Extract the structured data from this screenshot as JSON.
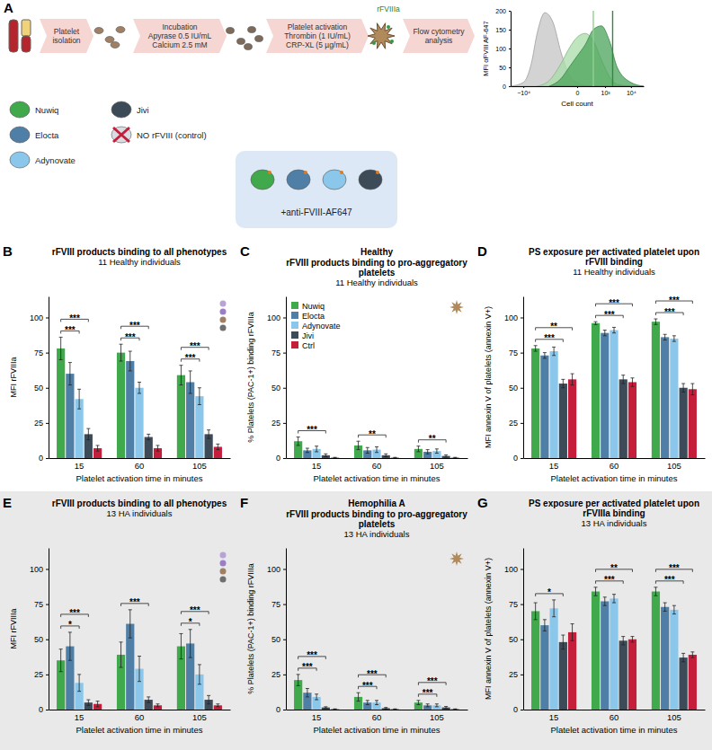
{
  "diagram": {
    "panel": "A",
    "steps": [
      [
        "Platelet",
        "isolation"
      ],
      [
        "Incubation",
        "Apyrase 0.5 IU/mL",
        "Calcium 2.5 mM"
      ],
      [
        "Platelet activation",
        "Thrombin (1 IU/mL)",
        "CRP-XL (5 µg/mL)"
      ],
      [
        "Flow cytometry",
        "analysis"
      ]
    ],
    "product_label": "rFVIIIa",
    "legend": [
      {
        "name": "Nuwiq",
        "color": "#3fa94b"
      },
      {
        "name": "Elocta",
        "color": "#4f7fa6"
      },
      {
        "name": "Adynovate",
        "color": "#8ac7ea"
      },
      {
        "name": "Jivi",
        "color": "#3d4b59"
      },
      {
        "name": "NO rFVIII (control)",
        "color": "#c41e3a"
      }
    ],
    "antibody_label": "+anti-FVIII-AF647"
  },
  "chart_data": [
    {
      "type": "area",
      "y_label": "MFI αFVIII AF-647",
      "x_label": "Cell count",
      "log": "x",
      "xlim": [
        -30000,
        30000
      ],
      "xticks": [
        {
          "value": -10000,
          "label": "−10⁴"
        },
        0,
        {
          "value": 1000,
          "label": "10³"
        },
        {
          "value": 10000,
          "label": "10⁴"
        }
      ],
      "ylim": [
        0,
        200
      ],
      "yticks": [
        0,
        50,
        100,
        150,
        200
      ],
      "series": [
        {
          "color": "#c4c4c4",
          "x": [
            -30000,
            -10000,
            -5000,
            -3000,
            -1500,
            -700,
            -300,
            -100,
            0,
            100,
            300
          ],
          "values": [
            0,
            10,
            60,
            140,
            195,
            170,
            90,
            30,
            10,
            2,
            0
          ]
        },
        {
          "color": "#a8dca8",
          "x": [
            -3000,
            -1000,
            -300,
            -100,
            0,
            100,
            300,
            700,
            1500,
            3000,
            10000
          ],
          "values": [
            0,
            15,
            60,
            100,
            130,
            140,
            120,
            70,
            25,
            5,
            0
          ]
        },
        {
          "color": "#4aa35a",
          "x": [
            -1000,
            -300,
            -100,
            0,
            100,
            300,
            700,
            1500,
            3000,
            10000,
            30000
          ],
          "values": [
            0,
            20,
            50,
            80,
            110,
            150,
            160,
            120,
            50,
            10,
            0
          ]
        }
      ],
      "reference_lines": [
        {
          "value": 300,
          "color": "#8fd18f"
        },
        {
          "value": 2000,
          "color": "#2e8b3e"
        }
      ]
    },
    {
      "panel": "B",
      "type": "bar",
      "title": "rFVIII products binding to all phenotypes",
      "subtitle": "11 Healthy individuals",
      "y_label": "MFI rFVIIIa",
      "x_label": "Platelet activation time in minutes",
      "categories": [
        "15",
        "60",
        "105"
      ],
      "ylim": [
        0,
        115
      ],
      "yticks": [
        0,
        25,
        50,
        75,
        100
      ],
      "series": [
        {
          "color": "#3fa94b",
          "values": [
            78,
            75,
            59
          ],
          "errors": [
            8,
            6,
            7
          ]
        },
        {
          "color": "#4f7fa6",
          "values": [
            60,
            69,
            54
          ],
          "errors": [
            8,
            7,
            8
          ]
        },
        {
          "color": "#8ac7ea",
          "values": [
            42,
            50,
            44
          ],
          "errors": [
            7,
            4,
            6
          ]
        },
        {
          "color": "#3d4b59",
          "values": [
            17,
            15,
            17
          ],
          "errors": [
            4,
            2,
            3
          ]
        },
        {
          "color": "#c41e3a",
          "values": [
            7,
            7,
            8
          ],
          "errors": [
            2,
            2,
            2
          ]
        }
      ],
      "significance": [
        {
          "category": "15",
          "series": [
            0,
            2
          ],
          "label": "***"
        },
        {
          "category": "15",
          "series": [
            0,
            3
          ],
          "label": "***"
        },
        {
          "category": "60",
          "series": [
            0,
            2
          ],
          "label": "***"
        },
        {
          "category": "60",
          "series": [
            0,
            3
          ],
          "label": "***"
        },
        {
          "category": "105",
          "series": [
            0,
            2
          ],
          "label": "***"
        },
        {
          "category": "105",
          "series": [
            0,
            3
          ],
          "label": "***"
        }
      ]
    },
    {
      "panel": "C",
      "type": "bar",
      "heading": "Healthy",
      "title": "rFVIII products binding to pro-aggregatory platelets",
      "subtitle": "11 Healthy individuals",
      "y_label": "% Platelets (PAC-1+) binding rFVIIIa",
      "x_label": "Platelet activation time in minutes",
      "categories": [
        "15",
        "60",
        "105"
      ],
      "ylim": [
        0,
        115
      ],
      "yticks": [
        0,
        25,
        50,
        75,
        100
      ],
      "legend": "top-left",
      "series": [
        {
          "name": "Nuwiq",
          "color": "#3fa94b",
          "values": [
            12,
            9,
            6.5
          ],
          "errors": [
            3,
            3,
            2
          ]
        },
        {
          "name": "Elocta",
          "color": "#4f7fa6",
          "values": [
            5.5,
            5.5,
            4.5
          ],
          "errors": [
            1.5,
            2,
            1.5
          ]
        },
        {
          "name": "Adynovate",
          "color": "#8ac7ea",
          "values": [
            6.5,
            6,
            5
          ],
          "errors": [
            2,
            2,
            1.5
          ]
        },
        {
          "name": "Jivi",
          "color": "#3d4b59",
          "values": [
            2,
            2,
            1.5
          ],
          "errors": [
            1,
            1,
            0.8
          ]
        },
        {
          "name": "Ctrl",
          "color": "#c41e3a",
          "values": [
            0.3,
            0.3,
            0.3
          ],
          "errors": [
            0.2,
            0.2,
            0.2
          ]
        }
      ],
      "significance": [
        {
          "category": "15",
          "series": [
            0,
            3
          ],
          "label": "***"
        },
        {
          "category": "60",
          "series": [
            0,
            3
          ],
          "label": "**"
        },
        {
          "category": "105",
          "series": [
            0,
            3
          ],
          "label": "**"
        }
      ]
    },
    {
      "panel": "D",
      "type": "bar",
      "title": "PS exposure per activated platelet upon rFVIII binding",
      "subtitle": "11 Healthy individuals",
      "y_label": "MFI annexin V of platelets (annexin V+)",
      "x_label": "Platelet activation time in minutes",
      "categories": [
        "15",
        "60",
        "105"
      ],
      "ylim": [
        0,
        115
      ],
      "yticks": [
        0,
        25,
        50,
        75,
        100
      ],
      "series": [
        {
          "color": "#3fa94b",
          "values": [
            78,
            96,
            97
          ],
          "errors": [
            2,
            1,
            2
          ]
        },
        {
          "color": "#4f7fa6",
          "values": [
            73,
            89,
            86
          ],
          "errors": [
            2,
            2,
            2
          ]
        },
        {
          "color": "#8ac7ea",
          "values": [
            76,
            91,
            85
          ],
          "errors": [
            3,
            2,
            2
          ]
        },
        {
          "color": "#3d4b59",
          "values": [
            53,
            56,
            50
          ],
          "errors": [
            3,
            3,
            3
          ]
        },
        {
          "color": "#c41e3a",
          "values": [
            56,
            54,
            49
          ],
          "errors": [
            4,
            3,
            4
          ]
        }
      ],
      "significance": [
        {
          "category": "15",
          "series": [
            0,
            3
          ],
          "label": "***"
        },
        {
          "category": "15",
          "series": [
            0,
            4
          ],
          "label": "**"
        },
        {
          "category": "60",
          "series": [
            0,
            3
          ],
          "label": "***"
        },
        {
          "category": "60",
          "series": [
            0,
            4
          ],
          "label": "***"
        },
        {
          "category": "105",
          "series": [
            0,
            3
          ],
          "label": "***"
        },
        {
          "category": "105",
          "series": [
            0,
            4
          ],
          "label": "***"
        }
      ]
    },
    {
      "panel": "E",
      "type": "bar",
      "title": "rFVIII products binding to all phenotypes",
      "subtitle": "13 HA individuals",
      "y_label": "MFI rFVIIIa",
      "x_label": "Platelet activation time in minutes",
      "categories": [
        "15",
        "60",
        "105"
      ],
      "ylim": [
        0,
        115
      ],
      "yticks": [
        0,
        25,
        50,
        75,
        100
      ],
      "series": [
        {
          "color": "#3fa94b",
          "values": [
            35,
            39,
            45
          ],
          "errors": [
            8,
            9,
            9
          ]
        },
        {
          "color": "#4f7fa6",
          "values": [
            45,
            61,
            47
          ],
          "errors": [
            10,
            10,
            10
          ]
        },
        {
          "color": "#8ac7ea",
          "values": [
            19,
            29,
            25
          ],
          "errors": [
            6,
            9,
            7
          ]
        },
        {
          "color": "#3d4b59",
          "values": [
            5,
            7,
            7
          ],
          "errors": [
            2,
            2,
            3
          ]
        },
        {
          "color": "#c41e3a",
          "values": [
            4,
            3,
            3
          ],
          "errors": [
            2,
            1,
            1
          ]
        }
      ],
      "significance": [
        {
          "category": "15",
          "series": [
            0,
            2
          ],
          "label": "*"
        },
        {
          "category": "15",
          "series": [
            0,
            3
          ],
          "label": "***"
        },
        {
          "category": "60",
          "series": [
            0,
            3
          ],
          "label": "***"
        },
        {
          "category": "105",
          "series": [
            0,
            2
          ],
          "label": "*"
        },
        {
          "category": "105",
          "series": [
            0,
            3
          ],
          "label": "***"
        }
      ]
    },
    {
      "panel": "F",
      "type": "bar",
      "heading": "Hemophilia A",
      "title": "rFVIII products binding to pro-aggregatory platelets",
      "subtitle": "13 HA individuals",
      "y_label": "% Platelets (PAC-1+) binding rFVIIIa",
      "x_label": "Platelet activation time in minutes",
      "categories": [
        "15",
        "60",
        "105"
      ],
      "ylim": [
        0,
        115
      ],
      "yticks": [
        0,
        25,
        50,
        75,
        100
      ],
      "series": [
        {
          "color": "#3fa94b",
          "values": [
            21,
            9,
            5
          ],
          "errors": [
            4,
            3,
            1.5
          ]
        },
        {
          "color": "#4f7fa6",
          "values": [
            12,
            5,
            3
          ],
          "errors": [
            3,
            1.5,
            1
          ]
        },
        {
          "color": "#8ac7ea",
          "values": [
            9,
            5,
            3
          ],
          "errors": [
            2,
            1.5,
            1
          ]
        },
        {
          "color": "#3d4b59",
          "values": [
            1.5,
            1,
            1.5
          ],
          "errors": [
            0.5,
            0.5,
            0.7
          ]
        },
        {
          "color": "#c41e3a",
          "values": [
            0.3,
            0.3,
            0.3
          ],
          "errors": [
            0.2,
            0.2,
            0.2
          ]
        }
      ],
      "significance": [
        {
          "category": "15",
          "series": [
            0,
            2
          ],
          "label": "***"
        },
        {
          "category": "15",
          "series": [
            0,
            3
          ],
          "label": "***"
        },
        {
          "category": "60",
          "series": [
            0,
            2
          ],
          "label": "***"
        },
        {
          "category": "60",
          "series": [
            0,
            3
          ],
          "label": "***"
        },
        {
          "category": "105",
          "series": [
            0,
            2
          ],
          "label": "***"
        },
        {
          "category": "105",
          "series": [
            0,
            3
          ],
          "label": "***"
        }
      ]
    },
    {
      "panel": "G",
      "type": "bar",
      "title": "PS exposure per activated platelet upon rFVIIIa binding",
      "subtitle": "13 HA individuals",
      "y_label": "MFI annexin V of platelets (annexin V+)",
      "x_label": "Platelet activation time in minutes",
      "categories": [
        "15",
        "60",
        "105"
      ],
      "ylim": [
        0,
        115
      ],
      "yticks": [
        0,
        25,
        50,
        75,
        100
      ],
      "series": [
        {
          "color": "#3fa94b",
          "values": [
            70,
            84,
            84
          ],
          "errors": [
            6,
            3,
            3
          ]
        },
        {
          "color": "#4f7fa6",
          "values": [
            60,
            77,
            73
          ],
          "errors": [
            4,
            3,
            3
          ]
        },
        {
          "color": "#8ac7ea",
          "values": [
            72,
            79,
            71
          ],
          "errors": [
            6,
            3,
            3
          ]
        },
        {
          "color": "#3d4b59",
          "values": [
            48,
            49,
            37
          ],
          "errors": [
            5,
            3,
            3
          ]
        },
        {
          "color": "#c41e3a",
          "values": [
            55,
            50,
            39
          ],
          "errors": [
            6,
            2,
            2
          ]
        }
      ],
      "significance": [
        {
          "category": "15",
          "series": [
            0,
            3
          ],
          "label": "*"
        },
        {
          "category": "60",
          "series": [
            0,
            3
          ],
          "label": "***"
        },
        {
          "category": "60",
          "series": [
            0,
            4
          ],
          "label": "**"
        },
        {
          "category": "105",
          "series": [
            0,
            3
          ],
          "label": "***"
        },
        {
          "category": "105",
          "series": [
            0,
            4
          ],
          "label": "***"
        }
      ]
    }
  ]
}
